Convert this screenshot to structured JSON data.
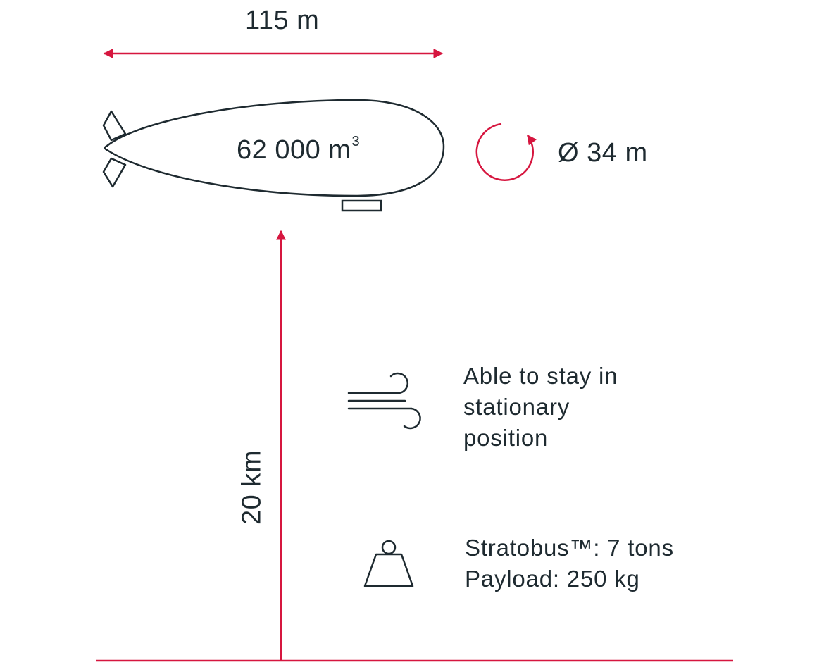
{
  "length": {
    "value": "115 m"
  },
  "volume": {
    "value": "62 000 m",
    "exponent": "3"
  },
  "diameter": {
    "value": "Ø 34 m"
  },
  "altitude": {
    "value": "20 km"
  },
  "wind_feature": {
    "lines": [
      "Able to stay in",
      "stationary",
      "position"
    ],
    "icon": "wind-icon"
  },
  "weight": {
    "lines": [
      "Stratobus™:  7 tons",
      "Payload: 250 kg"
    ],
    "icon": "weight-icon"
  },
  "colors": {
    "accent": "#d6163f",
    "outline": "#1e2a30"
  }
}
